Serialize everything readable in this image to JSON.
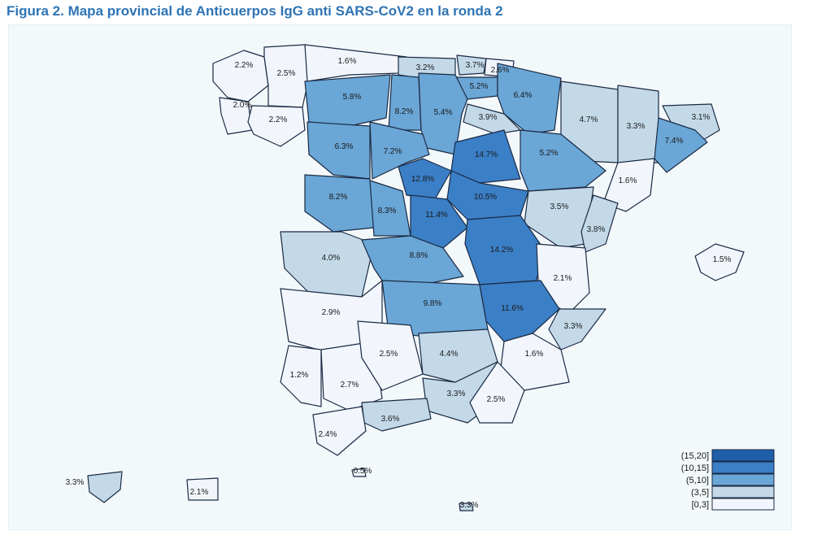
{
  "title": "Figura 2. Mapa provincial de Anticuerpos IgG anti SARS-CoV2 en la ronda 2",
  "colors": {
    "bin_0_3": "#f2f6fc",
    "bin_3_5": "#c3d9e8",
    "bin_5_10": "#6aa6d6",
    "bin_10_15": "#3b7fc6",
    "bin_15_20": "#1f5fa8",
    "border": "#1a2a44",
    "background": "#f3f8fb"
  },
  "legend": [
    {
      "label": "(15,20]",
      "bin": "bin_15_20"
    },
    {
      "label": "(10,15]",
      "bin": "bin_10_15"
    },
    {
      "label": "(5,10]",
      "bin": "bin_5_10"
    },
    {
      "label": "(3,5]",
      "bin": "bin_3_5"
    },
    {
      "label": "[0,3]",
      "bin": "bin_0_3"
    }
  ],
  "provinces": [
    {
      "id": "coruna",
      "label": "2.2%",
      "bin": "bin_0_3"
    },
    {
      "id": "lugo",
      "label": "2.5%",
      "bin": "bin_0_3"
    },
    {
      "id": "pontevedra",
      "label": "2.0%",
      "bin": "bin_0_3"
    },
    {
      "id": "ourense",
      "label": "2.2%",
      "bin": "bin_0_3"
    },
    {
      "id": "asturias",
      "label": "1.6%",
      "bin": "bin_0_3"
    },
    {
      "id": "cantabria",
      "label": "3.2%",
      "bin": "bin_3_5"
    },
    {
      "id": "vizcaya",
      "label": "3.7%",
      "bin": "bin_3_5"
    },
    {
      "id": "guipuzcoa",
      "label": "2.6%",
      "bin": "bin_0_3"
    },
    {
      "id": "alava",
      "label": "5.2%",
      "bin": "bin_5_10"
    },
    {
      "id": "navarra",
      "label": "6.4%",
      "bin": "bin_5_10"
    },
    {
      "id": "leon",
      "label": "5.8%",
      "bin": "bin_5_10"
    },
    {
      "id": "palencia",
      "label": "8.2%",
      "bin": "bin_5_10"
    },
    {
      "id": "burgos",
      "label": "5.4%",
      "bin": "bin_5_10"
    },
    {
      "id": "larioja",
      "label": "3.9%",
      "bin": "bin_3_5"
    },
    {
      "id": "huesca",
      "label": "4.7%",
      "bin": "bin_3_5"
    },
    {
      "id": "lleida",
      "label": "3.3%",
      "bin": "bin_3_5"
    },
    {
      "id": "girona",
      "label": "3.1%",
      "bin": "bin_3_5"
    },
    {
      "id": "barcelona",
      "label": "7.4%",
      "bin": "bin_5_10"
    },
    {
      "id": "zamora",
      "label": "6.3%",
      "bin": "bin_5_10"
    },
    {
      "id": "valladolid",
      "label": "7.2%",
      "bin": "bin_5_10"
    },
    {
      "id": "soria",
      "label": "14.7%",
      "bin": "bin_10_15"
    },
    {
      "id": "zaragoza",
      "label": "5.2%",
      "bin": "bin_5_10"
    },
    {
      "id": "tarragona",
      "label": "1.6%",
      "bin": "bin_0_3"
    },
    {
      "id": "segovia",
      "label": "12.8%",
      "bin": "bin_10_15"
    },
    {
      "id": "guadalajara",
      "label": "10.5%",
      "bin": "bin_10_15"
    },
    {
      "id": "salamanca",
      "label": "8.2%",
      "bin": "bin_5_10"
    },
    {
      "id": "avila",
      "label": "8.3%",
      "bin": "bin_5_10"
    },
    {
      "id": "madrid",
      "label": "11.4%",
      "bin": "bin_10_15"
    },
    {
      "id": "teruel",
      "label": "3.5%",
      "bin": "bin_3_5"
    },
    {
      "id": "castellon",
      "label": "3.8%",
      "bin": "bin_3_5"
    },
    {
      "id": "caceres",
      "label": "4.0%",
      "bin": "bin_3_5"
    },
    {
      "id": "toledo",
      "label": "8.8%",
      "bin": "bin_5_10"
    },
    {
      "id": "cuenca",
      "label": "14.2%",
      "bin": "bin_10_15"
    },
    {
      "id": "valencia",
      "label": "2.1%",
      "bin": "bin_0_3"
    },
    {
      "id": "baleares",
      "label": "1.5%",
      "bin": "bin_0_3"
    },
    {
      "id": "badajoz",
      "label": "2.9%",
      "bin": "bin_0_3"
    },
    {
      "id": "ciudadreal",
      "label": "9.8%",
      "bin": "bin_5_10"
    },
    {
      "id": "albacete",
      "label": "11.6%",
      "bin": "bin_10_15"
    },
    {
      "id": "alicante",
      "label": "3.3%",
      "bin": "bin_3_5"
    },
    {
      "id": "murcia",
      "label": "1.6%",
      "bin": "bin_0_3"
    },
    {
      "id": "huelva",
      "label": "1.2%",
      "bin": "bin_0_3"
    },
    {
      "id": "sevilla",
      "label": "2.7%",
      "bin": "bin_0_3"
    },
    {
      "id": "cordoba",
      "label": "2.5%",
      "bin": "bin_0_3"
    },
    {
      "id": "jaen",
      "label": "4.4%",
      "bin": "bin_3_5"
    },
    {
      "id": "granada",
      "label": "3.3%",
      "bin": "bin_3_5"
    },
    {
      "id": "almeria",
      "label": "2.5%",
      "bin": "bin_0_3"
    },
    {
      "id": "malaga",
      "label": "3.6%",
      "bin": "bin_3_5"
    },
    {
      "id": "cadiz",
      "label": "2.4%",
      "bin": "bin_0_3"
    },
    {
      "id": "ceuta",
      "label": "0.5%",
      "bin": "bin_0_3"
    },
    {
      "id": "tenerife",
      "label": "3.3%",
      "bin": "bin_3_5"
    },
    {
      "id": "laspalmas",
      "label": "2.1%",
      "bin": "bin_0_3"
    },
    {
      "id": "melilla",
      "label": "3.3%",
      "bin": "bin_3_5"
    }
  ]
}
